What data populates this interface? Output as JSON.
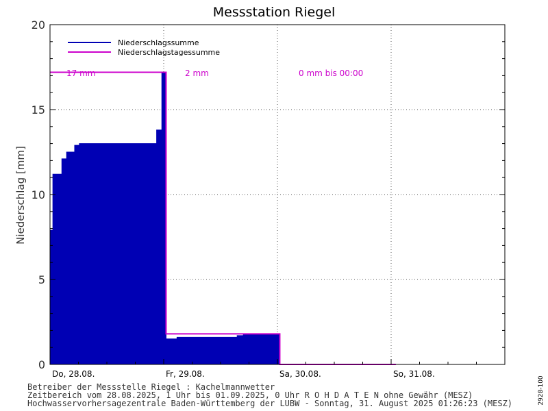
{
  "colors": {
    "cumulative": "#0000b4",
    "daily": "#cc00cc",
    "grid": "#555555",
    "axis": "#000000"
  },
  "chart_data": {
    "type": "area",
    "title": "Messstation Riegel",
    "ylabel": "Niederschlag [mm]",
    "ylim": [
      0,
      20
    ],
    "yticks": [
      0,
      5,
      10,
      15,
      20
    ],
    "xlim_hours": [
      0,
      96
    ],
    "days": [
      {
        "label": "Do, 28.08.",
        "start_hour": 0
      },
      {
        "label": "Fr, 29.08.",
        "start_hour": 24
      },
      {
        "label": "Sa, 30.08.",
        "start_hour": 48
      },
      {
        "label": "So, 31.08.",
        "start_hour": 72
      }
    ],
    "legend": [
      "Niederschlagssumme",
      "Niederschlagstagessumme"
    ],
    "series": [
      {
        "name": "Niederschlagssumme",
        "points": [
          [
            0,
            7.9
          ],
          [
            0.6,
            11.2
          ],
          [
            2.5,
            12.1
          ],
          [
            3.5,
            12.5
          ],
          [
            5.2,
            12.9
          ],
          [
            6.2,
            13.0
          ],
          [
            22.5,
            13.8
          ],
          [
            23.6,
            17.2
          ],
          [
            24.5,
            1.5
          ],
          [
            26.8,
            1.6
          ],
          [
            39.5,
            1.7
          ],
          [
            40.8,
            1.8
          ],
          [
            48.5,
            0.0
          ]
        ]
      },
      {
        "name": "Niederschlagstagessumme",
        "segments": [
          {
            "from": 0,
            "to": 24.5,
            "value": 17.2
          },
          {
            "from": 24.5,
            "to": 48.5,
            "value": 1.8
          },
          {
            "from": 48.5,
            "to": 73,
            "value": 0
          }
        ]
      }
    ],
    "daily_labels": [
      "17 mm",
      "2 mm",
      "0 mm bis 00:00"
    ]
  },
  "side_id": "2928-100",
  "footer": [
    "Betreiber der Messstelle Riegel : Kachelmannwetter",
    "Zeitbereich vom 28.08.2025, 1 Uhr bis 01.09.2025, 0 Uhr   R O H D A T E N ohne Gewähr (MESZ)",
    "Hochwasservorhersagezentrale Baden-Württemberg der LUBW -  Sonntag, 31. August 2025 01:26:23 (MESZ)"
  ]
}
